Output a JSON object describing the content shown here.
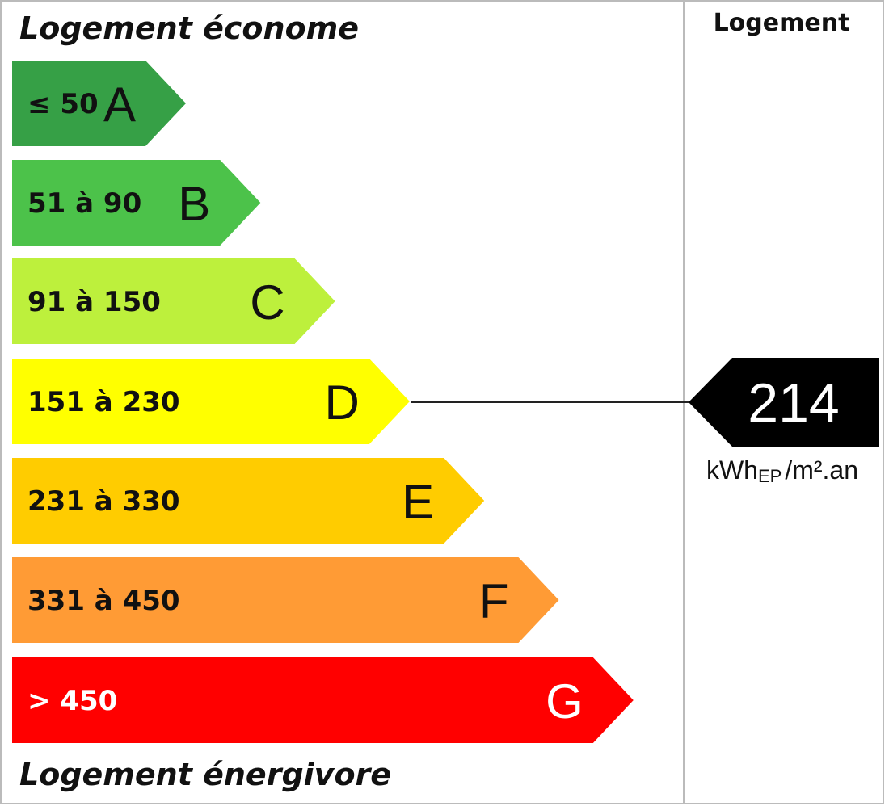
{
  "header": {
    "top": "Logement économe",
    "bottom": "Logement énergivore",
    "column": "Logement"
  },
  "classes": [
    {
      "range": "≤ 50",
      "letter": "A",
      "color": "#36a046"
    },
    {
      "range": "51 à 90",
      "letter": "B",
      "color": "#4cc24a"
    },
    {
      "range": "91 à 150",
      "letter": "C",
      "color": "#bdf03c"
    },
    {
      "range": "151 à 230",
      "letter": "D",
      "color": "#ffff00"
    },
    {
      "range": "231 à 330",
      "letter": "E",
      "color": "#ffcc00"
    },
    {
      "range": "331 à 450",
      "letter": "F",
      "color": "#ff9b35"
    },
    {
      "range": "> 450",
      "letter": "G",
      "color": "#ff0000"
    }
  ],
  "result": {
    "value": 214,
    "unit_main": "kWh",
    "unit_sub": "EP",
    "unit_rest": "/m².an"
  }
}
